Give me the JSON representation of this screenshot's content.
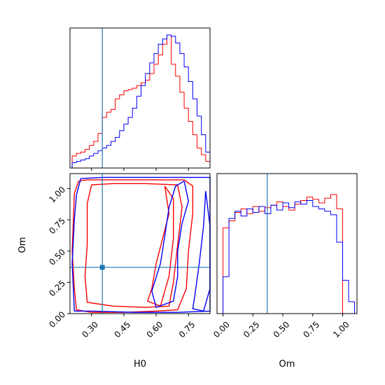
{
  "chart_data": [
    {
      "panel": "H0 marginal histogram",
      "type": "histogram",
      "xlim": [
        0.2,
        0.85
      ],
      "truth": 0.35,
      "x": [
        0.22,
        0.24,
        0.26,
        0.28,
        0.3,
        0.32,
        0.34,
        0.36,
        0.38,
        0.4,
        0.42,
        0.44,
        0.46,
        0.48,
        0.5,
        0.52,
        0.54,
        0.56,
        0.58,
        0.6,
        0.62,
        0.64,
        0.66,
        0.68,
        0.7,
        0.72,
        0.74,
        0.76,
        0.78,
        0.8,
        0.82,
        0.84
      ],
      "series": [
        {
          "color": "#ff0000",
          "values": [
            0.09,
            0.11,
            0.12,
            0.14,
            0.17,
            0.2,
            0.26,
            0.38,
            0.42,
            0.44,
            0.52,
            0.55,
            0.58,
            0.59,
            0.6,
            0.62,
            0.64,
            0.66,
            0.71,
            0.78,
            0.85,
            0.93,
            1.0,
            0.78,
            0.69,
            0.57,
            0.45,
            0.35,
            0.25,
            0.15,
            0.1,
            0.05
          ]
        },
        {
          "color": "#0000ff",
          "values": [
            0.04,
            0.05,
            0.06,
            0.07,
            0.09,
            0.11,
            0.13,
            0.15,
            0.17,
            0.2,
            0.23,
            0.28,
            0.33,
            0.38,
            0.45,
            0.54,
            0.62,
            0.71,
            0.79,
            0.86,
            0.93,
            0.97,
            1.0,
            0.99,
            0.94,
            0.86,
            0.76,
            0.65,
            0.52,
            0.39,
            0.25,
            0.12
          ]
        }
      ],
      "x_tick_labels": []
    },
    {
      "panel": "Om marginal histogram",
      "type": "histogram",
      "xlim": [
        -0.05,
        1.12
      ],
      "truth": 0.37,
      "x": [
        0.025,
        0.075,
        0.125,
        0.175,
        0.225,
        0.275,
        0.325,
        0.375,
        0.425,
        0.475,
        0.525,
        0.575,
        0.625,
        0.675,
        0.725,
        0.775,
        0.825,
        0.875,
        0.925,
        0.975,
        1.025,
        1.075
      ],
      "series": [
        {
          "color": "#ff0000",
          "values": [
            0.72,
            0.78,
            0.85,
            0.88,
            0.84,
            0.9,
            0.86,
            0.89,
            0.91,
            0.94,
            0.9,
            0.87,
            0.92,
            0.95,
            0.98,
            0.96,
            0.93,
            0.97,
            1.0,
            0.88,
            0,
            0
          ]
        },
        {
          "color": "#0000ff",
          "values": [
            0.31,
            0.8,
            0.86,
            0.82,
            0.88,
            0.85,
            0.9,
            0.84,
            0.91,
            0.87,
            0.93,
            0.89,
            0.94,
            0.92,
            0.95,
            0.9,
            0.88,
            0.86,
            0.83,
            0.6,
            0.28,
            0.1
          ]
        }
      ],
      "x_tick_labels": [
        "0.00",
        "0.25",
        "0.50",
        "0.75",
        "1.00"
      ],
      "xlabel": "Om"
    },
    {
      "panel": "H0 vs Om 2D contours",
      "type": "contour",
      "xlim": [
        0.2,
        0.85
      ],
      "ylim": [
        0.0,
        1.12
      ],
      "truth": {
        "H0": 0.35,
        "Om": 0.37
      },
      "x_tick_labels": [
        "0.30",
        "0.45",
        "0.60",
        "0.75"
      ],
      "y_tick_labels": [
        "0.00",
        "0.25",
        "0.50",
        "0.75",
        "1.00"
      ],
      "xlabel": "H0",
      "ylabel": "Om",
      "contours": [
        {
          "color": "#ff0000",
          "points": [
            [
              0.22,
              0.96
            ],
            [
              0.24,
              1.06
            ],
            [
              0.28,
              1.07
            ],
            [
              0.4,
              1.07
            ],
            [
              0.55,
              1.07
            ],
            [
              0.73,
              1.07
            ],
            [
              0.77,
              1.02
            ],
            [
              0.77,
              0.8
            ],
            [
              0.75,
              0.5
            ],
            [
              0.74,
              0.2
            ],
            [
              0.7,
              0.03
            ],
            [
              0.6,
              0.02
            ],
            [
              0.45,
              0.01
            ],
            [
              0.3,
              0.01
            ],
            [
              0.23,
              0.03
            ],
            [
              0.22,
              0.2
            ],
            [
              0.21,
              0.5
            ],
            [
              0.22,
              0.96
            ]
          ]
        },
        {
          "color": "#ff0000",
          "points": [
            [
              0.28,
              0.88
            ],
            [
              0.3,
              1.03
            ],
            [
              0.4,
              1.04
            ],
            [
              0.55,
              1.04
            ],
            [
              0.7,
              1.03
            ],
            [
              0.72,
              0.85
            ],
            [
              0.7,
              0.55
            ],
            [
              0.68,
              0.25
            ],
            [
              0.66,
              0.06
            ],
            [
              0.55,
              0.05
            ],
            [
              0.4,
              0.06
            ],
            [
              0.28,
              0.09
            ],
            [
              0.27,
              0.3
            ],
            [
              0.28,
              0.55
            ],
            [
              0.28,
              0.88
            ]
          ]
        },
        {
          "color": "#ff0000",
          "points": [
            [
              0.64,
              1.02
            ],
            [
              0.66,
              0.8
            ],
            [
              0.63,
              0.6
            ],
            [
              0.6,
              0.4
            ],
            [
              0.58,
              0.2
            ],
            [
              0.56,
              0.1
            ],
            [
              0.62,
              0.06
            ],
            [
              0.66,
              0.3
            ],
            [
              0.68,
              0.6
            ],
            [
              0.68,
              0.92
            ],
            [
              0.64,
              1.02
            ]
          ]
        },
        {
          "color": "#0000ff",
          "points": [
            [
              0.25,
              1.08
            ],
            [
              0.35,
              1.09
            ],
            [
              0.5,
              1.09
            ],
            [
              0.65,
              1.09
            ],
            [
              0.8,
              1.09
            ],
            [
              0.85,
              1.09
            ],
            [
              0.85,
              0.02
            ],
            [
              0.7,
              0.01
            ],
            [
              0.5,
              0.01
            ],
            [
              0.3,
              0.02
            ],
            [
              0.22,
              0.02
            ],
            [
              0.21,
              0.4
            ],
            [
              0.22,
              0.75
            ],
            [
              0.23,
              0.95
            ],
            [
              0.25,
              1.08
            ]
          ]
        },
        {
          "color": "#0000ff",
          "points": [
            [
              0.73,
              1.06
            ],
            [
              0.75,
              0.9
            ],
            [
              0.72,
              0.72
            ],
            [
              0.7,
              0.5
            ],
            [
              0.7,
              0.3
            ],
            [
              0.68,
              0.1
            ],
            [
              0.6,
              0.05
            ],
            [
              0.58,
              0.18
            ],
            [
              0.62,
              0.4
            ],
            [
              0.64,
              0.62
            ],
            [
              0.66,
              0.85
            ],
            [
              0.69,
              1.02
            ],
            [
              0.73,
              1.06
            ]
          ]
        },
        {
          "color": "#0000ff",
          "points": [
            [
              0.83,
              0.98
            ],
            [
              0.82,
              0.7
            ],
            [
              0.8,
              0.4
            ],
            [
              0.78,
              0.15
            ],
            [
              0.77,
              0.04
            ],
            [
              0.82,
              0.02
            ],
            [
              0.85,
              0.2
            ],
            [
              0.85,
              0.7
            ],
            [
              0.83,
              0.98
            ]
          ]
        }
      ]
    }
  ]
}
